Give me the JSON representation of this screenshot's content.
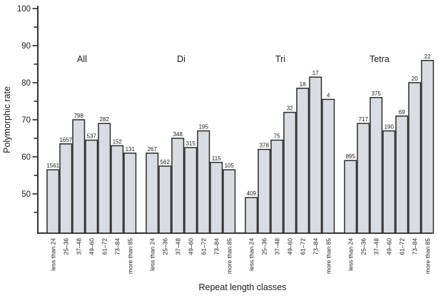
{
  "chart_data": {
    "type": "bar",
    "title": "",
    "xlabel": "Repeat length classes",
    "ylabel": "Polymorphic rate",
    "ylim": [
      40,
      100
    ],
    "yticks_major": [
      50,
      60,
      70,
      80,
      90,
      100
    ],
    "yticks_minor": [
      45,
      55,
      65,
      75,
      85,
      95
    ],
    "grid": false,
    "legend_position": "none",
    "categories": [
      "less than 24",
      "25–36",
      "37–48",
      "49–60",
      "61–72",
      "73–84",
      "more than 85"
    ],
    "value_meaning": "polymorphic rate (%), bar height",
    "count_label_meaning": "number printed above each bar",
    "groups": [
      {
        "name": "All",
        "values": [
          56.5,
          63.5,
          70,
          64.5,
          69,
          63,
          61
        ],
        "counts": [
          "1561",
          "1657",
          "798",
          "537",
          "282",
          "152",
          "131"
        ]
      },
      {
        "name": "Di",
        "values": [
          61,
          57.5,
          65,
          62.5,
          67,
          58.5,
          56.5
        ],
        "counts": [
          "267",
          "562",
          "348",
          "315",
          "195",
          "115",
          "105"
        ]
      },
      {
        "name": "Tri",
        "values": [
          49,
          62,
          64.5,
          72,
          78.5,
          81.5,
          75.5
        ],
        "counts": [
          "409",
          "378",
          "75",
          "32",
          "18",
          "17",
          "4"
        ]
      },
      {
        "name": "Tetra",
        "values": [
          59,
          69,
          76,
          67,
          71,
          80,
          86
        ],
        "counts": [
          "895",
          "717",
          "375",
          "190",
          "69",
          "20",
          "22"
        ]
      }
    ],
    "colors": {
      "bar_fill": "#d9dce2",
      "bar_stroke": "#2b2b2b",
      "axis": "#333333",
      "text": "#1a1a1a",
      "background": "#ffffff"
    }
  }
}
